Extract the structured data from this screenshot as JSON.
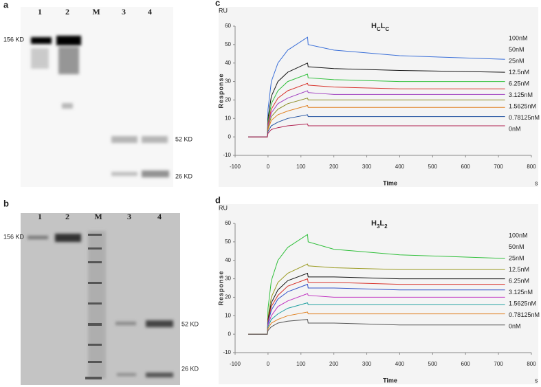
{
  "gels": [
    {
      "label": "a",
      "lanes": [
        "1",
        "2",
        "M",
        "3",
        "4"
      ],
      "markers": [
        "156 KD",
        "52 KD",
        "26 KD"
      ]
    },
    {
      "label": "b",
      "lanes": [
        "1",
        "2",
        "M",
        "3",
        "4"
      ],
      "markers": [
        "156 KD",
        "52 KD",
        "26 KD"
      ]
    }
  ],
  "chart_data": [
    {
      "type": "line",
      "panel_label": "c",
      "title": [
        "H",
        "C",
        "L",
        "C"
      ],
      "y_unit": "RU",
      "x_unit": "s",
      "x_label": "Time",
      "y_label": "Response",
      "xlim": [
        -100,
        800
      ],
      "xticks": [
        -100,
        0,
        100,
        200,
        300,
        400,
        500,
        600,
        700,
        800
      ],
      "ylim": [
        -10,
        60
      ],
      "yticks": [
        -10,
        0,
        10,
        20,
        30,
        40,
        50,
        60
      ],
      "x": [
        -60,
        -2,
        0,
        10,
        30,
        60,
        120,
        122,
        200,
        400,
        720
      ],
      "series": [
        {
          "name": "100nM",
          "color": "#3a6fd8",
          "values": [
            0,
            0,
            15,
            30,
            40,
            47,
            54,
            50,
            47,
            44,
            42
          ]
        },
        {
          "name": "50nM",
          "color": "#111111",
          "values": [
            0,
            0,
            10,
            22,
            30,
            35,
            40,
            38,
            37,
            36,
            35
          ]
        },
        {
          "name": "25nM",
          "color": "#2fbf3a",
          "values": [
            0,
            0,
            8,
            18,
            25,
            30,
            34,
            32,
            31,
            30,
            30
          ]
        },
        {
          "name": "12.5nM",
          "color": "#d8322b",
          "values": [
            0,
            0,
            7,
            15,
            21,
            25,
            29,
            28,
            27,
            26,
            26
          ]
        },
        {
          "name": "6.25nM",
          "color": "#a040c0",
          "values": [
            0,
            0,
            6,
            13,
            18,
            21,
            25,
            24,
            23,
            23,
            23
          ]
        },
        {
          "name": "3.125nM",
          "color": "#8a8a20",
          "values": [
            0,
            0,
            5,
            11,
            15,
            18,
            21,
            20,
            20,
            20,
            20
          ]
        },
        {
          "name": "1.5625nM",
          "color": "#e08020",
          "values": [
            0,
            0,
            4,
            9,
            12,
            14,
            17,
            16,
            16,
            16,
            16
          ]
        },
        {
          "name": "0.78125nM",
          "color": "#2050a0",
          "values": [
            0,
            0,
            3,
            6,
            8,
            10,
            12,
            11,
            11,
            11,
            11
          ]
        },
        {
          "name": "0nM",
          "color": "#b02050",
          "values": [
            0,
            0,
            2,
            4,
            5,
            6,
            7,
            6,
            6,
            6,
            6
          ]
        }
      ]
    },
    {
      "type": "line",
      "panel_label": "d",
      "title": [
        "H",
        "3",
        "L",
        "2"
      ],
      "y_unit": "RU",
      "x_unit": "s",
      "x_label": "Time",
      "y_label": "Response",
      "xlim": [
        -100,
        800
      ],
      "xticks": [
        -100,
        0,
        100,
        200,
        300,
        400,
        500,
        600,
        700,
        800
      ],
      "ylim": [
        -10,
        60
      ],
      "yticks": [
        -10,
        0,
        10,
        20,
        30,
        40,
        50,
        60
      ],
      "x": [
        -60,
        -2,
        0,
        10,
        30,
        60,
        120,
        122,
        200,
        400,
        720
      ],
      "series": [
        {
          "name": "100nM",
          "color": "#2fbf3a",
          "values": [
            0,
            0,
            14,
            29,
            40,
            47,
            54,
            50,
            46,
            43,
            41
          ]
        },
        {
          "name": "50nM",
          "color": "#9a9a20",
          "values": [
            0,
            0,
            9,
            20,
            28,
            33,
            38,
            37,
            36,
            35,
            35
          ]
        },
        {
          "name": "25nM",
          "color": "#111111",
          "values": [
            0,
            0,
            8,
            17,
            24,
            29,
            33,
            31,
            31,
            30,
            30
          ]
        },
        {
          "name": "12.5nM",
          "color": "#d8322b",
          "values": [
            0,
            0,
            7,
            15,
            21,
            26,
            30,
            28,
            28,
            27,
            27
          ]
        },
        {
          "name": "6.25nM",
          "color": "#3050c8",
          "values": [
            0,
            0,
            6,
            13,
            19,
            23,
            27,
            25,
            25,
            24,
            24
          ]
        },
        {
          "name": "3.125nM",
          "color": "#c030c0",
          "values": [
            0,
            0,
            5,
            10,
            15,
            18,
            22,
            21,
            20,
            20,
            20
          ]
        },
        {
          "name": "1.5625nM",
          "color": "#20a0a0",
          "values": [
            0,
            0,
            4,
            8,
            11,
            14,
            17,
            16,
            16,
            16,
            16
          ]
        },
        {
          "name": "0.78125nM",
          "color": "#e08020",
          "values": [
            0,
            0,
            3,
            6,
            8,
            10,
            12,
            11,
            11,
            11,
            11
          ]
        },
        {
          "name": "0nM",
          "color": "#555555",
          "values": [
            0,
            0,
            2,
            4,
            6,
            7,
            8,
            6,
            6,
            5,
            5
          ]
        }
      ]
    }
  ]
}
